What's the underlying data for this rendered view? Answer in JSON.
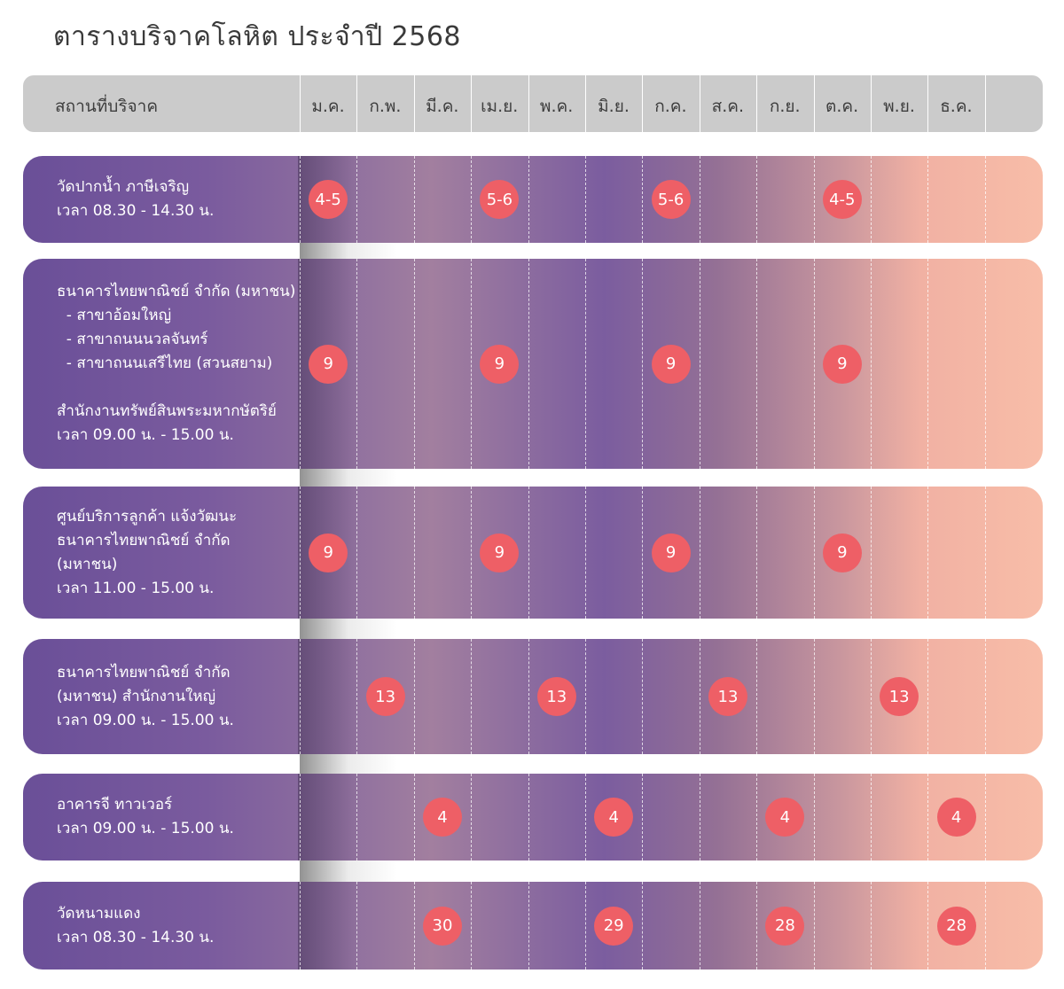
{
  "title": "ตารางบริจาคโลหิต ประจำปี 2568",
  "header": {
    "location_label": "สถานที่บริจาค",
    "months": [
      "ม.ค.",
      "ก.พ.",
      "มี.ค.",
      "เม.ย.",
      "พ.ค.",
      "มิ.ย.",
      "ก.ค.",
      "ส.ค.",
      "ก.ย.",
      "ต.ค.",
      "พ.ย.",
      "ธ.ค."
    ]
  },
  "locations": [
    {
      "lines": [
        "วัดปากน้ำ ภาษีเจริญ",
        "เวลา 08.30 - 14.30 น."
      ],
      "dates": [
        {
          "month": "ม.ค.",
          "label": "4-5"
        },
        {
          "month": "เม.ย.",
          "label": "5-6"
        },
        {
          "month": "ก.ค.",
          "label": "5-6"
        },
        {
          "month": "ต.ค.",
          "label": "4-5"
        }
      ]
    },
    {
      "lines": [
        "ธนาคารไทยพาณิชย์ จำกัด (มหาชน)",
        "  - สาขาอ้อมใหญ่",
        "  - สาขาถนนนวลจันทร์",
        "  - สาขาถนนเสรีไทย (สวนสยาม)",
        "",
        "สำนักงานทรัพย์สินพระมหากษัตริย์",
        "เวลา 09.00 น. - 15.00 น."
      ],
      "dates": [
        {
          "month": "ม.ค.",
          "label": "9"
        },
        {
          "month": "เม.ย.",
          "label": "9"
        },
        {
          "month": "ก.ค.",
          "label": "9"
        },
        {
          "month": "ต.ค.",
          "label": "9"
        }
      ]
    },
    {
      "lines": [
        "ศูนย์บริการลูกค้า แจ้งวัฒนะ",
        "ธนาคารไทยพาณิชย์ จำกัด",
        "(มหาชน)",
        "เวลา 11.00 - 15.00 น."
      ],
      "dates": [
        {
          "month": "ม.ค.",
          "label": "9"
        },
        {
          "month": "เม.ย.",
          "label": "9"
        },
        {
          "month": "ก.ค.",
          "label": "9"
        },
        {
          "month": "ต.ค.",
          "label": "9"
        }
      ]
    },
    {
      "lines": [
        "ธนาคารไทยพาณิชย์ จำกัด",
        "(มหาชน) สำนักงานใหญ่",
        "เวลา 09.00 น. - 15.00 น."
      ],
      "dates": [
        {
          "month": "ก.พ.",
          "label": "13"
        },
        {
          "month": "พ.ค.",
          "label": "13"
        },
        {
          "month": "ส.ค.",
          "label": "13"
        },
        {
          "month": "พ.ย.",
          "label": "13"
        }
      ]
    },
    {
      "lines": [
        "อาคารจี ทาวเวอร์",
        "เวลา 09.00 น. - 15.00 น."
      ],
      "dates": [
        {
          "month": "มี.ค.",
          "label": "4"
        },
        {
          "month": "มิ.ย.",
          "label": "4"
        },
        {
          "month": "ก.ย.",
          "label": "4"
        },
        {
          "month": "ธ.ค.",
          "label": "4"
        }
      ]
    },
    {
      "lines": [
        "วัดหนามแดง",
        "เวลา 08.30 - 14.30 น."
      ],
      "dates": [
        {
          "month": "มี.ค.",
          "label": "30"
        },
        {
          "month": "มิ.ย.",
          "label": "29"
        },
        {
          "month": "ก.ย.",
          "label": "28"
        },
        {
          "month": "ธ.ค.",
          "label": "28"
        }
      ]
    }
  ],
  "colors": {
    "header_bg": "#cbcbcb",
    "date_badge": "#ee5f66",
    "gradient_start": "#6a4f98",
    "gradient_end": "#f8bda8"
  }
}
